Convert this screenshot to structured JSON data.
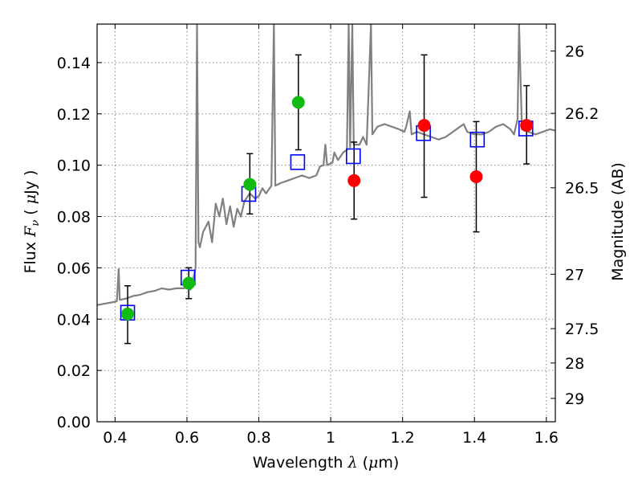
{
  "chart_data": {
    "type": "scatter",
    "title": "",
    "xlabel": {
      "prefix": "Wavelength  ",
      "symbol": "λ",
      "unit_open": " (",
      "unit_mu": "μ",
      "unit_rest": "m)"
    },
    "ylabel": {
      "prefix": "Flux  ",
      "symbol": "F",
      "subscript": "ν",
      "unit_open": "  ( ",
      "unit_mu": "μ",
      "unit_rest": "Jy )"
    },
    "y2label": "Magnitude (AB)",
    "xlim": [
      0.35,
      1.625
    ],
    "ylim": [
      0.0,
      0.155
    ],
    "grid": true,
    "grid_style": "dotted",
    "x_ticks": [
      {
        "value": 0.4,
        "label": "0.4"
      },
      {
        "value": 0.6,
        "label": "0.6"
      },
      {
        "value": 0.8,
        "label": "0.8"
      },
      {
        "value": 1.0,
        "label": "1"
      },
      {
        "value": 1.2,
        "label": "1.2"
      },
      {
        "value": 1.4,
        "label": "1.4"
      },
      {
        "value": 1.6,
        "label": "1.6"
      }
    ],
    "y_ticks": [
      {
        "value": 0.0,
        "label": "0.00"
      },
      {
        "value": 0.02,
        "label": "0.02"
      },
      {
        "value": 0.04,
        "label": "0.04"
      },
      {
        "value": 0.06,
        "label": "0.06"
      },
      {
        "value": 0.08,
        "label": "0.08"
      },
      {
        "value": 0.1,
        "label": "0.10"
      },
      {
        "value": 0.12,
        "label": "0.12"
      },
      {
        "value": 0.14,
        "label": "0.14"
      }
    ],
    "y2_ticks": [
      {
        "label": "26",
        "flux": 0.1445
      },
      {
        "label": "26.2",
        "flux": 0.1202
      },
      {
        "label": "26.5",
        "flux": 0.0912
      },
      {
        "label": "27",
        "flux": 0.0575
      },
      {
        "label": "27.5",
        "flux": 0.0363
      },
      {
        "label": "28",
        "flux": 0.0229
      },
      {
        "label": "29",
        "flux": 0.0091
      }
    ],
    "colors": {
      "spectrum": "#808080",
      "model": "#0000ff",
      "green": "#11bb11",
      "red": "#ff0000",
      "errorbar": "#000000",
      "grid": "#888888"
    },
    "spectrum": [
      [
        0.35,
        0.0455
      ],
      [
        0.37,
        0.046
      ],
      [
        0.39,
        0.0465
      ],
      [
        0.405,
        0.047
      ],
      [
        0.41,
        0.0595
      ],
      [
        0.413,
        0.0475
      ],
      [
        0.43,
        0.048
      ],
      [
        0.45,
        0.049
      ],
      [
        0.47,
        0.0495
      ],
      [
        0.49,
        0.0505
      ],
      [
        0.51,
        0.051
      ],
      [
        0.53,
        0.052
      ],
      [
        0.55,
        0.0515
      ],
      [
        0.57,
        0.052
      ],
      [
        0.59,
        0.052
      ],
      [
        0.605,
        0.0525
      ],
      [
        0.61,
        0.0515
      ],
      [
        0.618,
        0.056
      ],
      [
        0.624,
        0.06
      ],
      [
        0.628,
        0.155
      ],
      [
        0.632,
        0.07
      ],
      [
        0.636,
        0.068
      ],
      [
        0.645,
        0.074
      ],
      [
        0.66,
        0.078
      ],
      [
        0.67,
        0.07
      ],
      [
        0.68,
        0.085
      ],
      [
        0.69,
        0.08
      ],
      [
        0.7,
        0.087
      ],
      [
        0.71,
        0.077
      ],
      [
        0.72,
        0.084
      ],
      [
        0.73,
        0.076
      ],
      [
        0.74,
        0.083
      ],
      [
        0.75,
        0.08
      ],
      [
        0.76,
        0.086
      ],
      [
        0.775,
        0.089
      ],
      [
        0.79,
        0.087
      ],
      [
        0.8,
        0.088
      ],
      [
        0.81,
        0.091
      ],
      [
        0.82,
        0.089
      ],
      [
        0.835,
        0.092
      ],
      [
        0.842,
        0.155
      ],
      [
        0.846,
        0.092
      ],
      [
        0.86,
        0.093
      ],
      [
        0.88,
        0.094
      ],
      [
        0.9,
        0.095
      ],
      [
        0.92,
        0.096
      ],
      [
        0.94,
        0.095
      ],
      [
        0.96,
        0.096
      ],
      [
        0.97,
        0.0995
      ],
      [
        0.98,
        0.1
      ],
      [
        0.985,
        0.108
      ],
      [
        0.99,
        0.1
      ],
      [
        1.005,
        0.101
      ],
      [
        1.01,
        0.105
      ],
      [
        1.02,
        0.102
      ],
      [
        1.035,
        0.105
      ],
      [
        1.045,
        0.106
      ],
      [
        1.05,
        0.155
      ],
      [
        1.054,
        0.107
      ],
      [
        1.06,
        0.155
      ],
      [
        1.064,
        0.108
      ],
      [
        1.08,
        0.108
      ],
      [
        1.09,
        0.111
      ],
      [
        1.1,
        0.108
      ],
      [
        1.112,
        0.155
      ],
      [
        1.116,
        0.112
      ],
      [
        1.13,
        0.115
      ],
      [
        1.15,
        0.116
      ],
      [
        1.17,
        0.115
      ],
      [
        1.19,
        0.114
      ],
      [
        1.205,
        0.113
      ],
      [
        1.21,
        0.115
      ],
      [
        1.22,
        0.121
      ],
      [
        1.225,
        0.112
      ],
      [
        1.24,
        0.113
      ],
      [
        1.26,
        0.112
      ],
      [
        1.28,
        0.111
      ],
      [
        1.3,
        0.11
      ],
      [
        1.32,
        0.111
      ],
      [
        1.34,
        0.113
      ],
      [
        1.36,
        0.115
      ],
      [
        1.37,
        0.116
      ],
      [
        1.38,
        0.113
      ],
      [
        1.4,
        0.112
      ],
      [
        1.42,
        0.112
      ],
      [
        1.44,
        0.113
      ],
      [
        1.46,
        0.115
      ],
      [
        1.48,
        0.116
      ],
      [
        1.5,
        0.114
      ],
      [
        1.51,
        0.112
      ],
      [
        1.52,
        0.118
      ],
      [
        1.524,
        0.155
      ],
      [
        1.532,
        0.114
      ],
      [
        1.55,
        0.113
      ],
      [
        1.57,
        0.112
      ],
      [
        1.59,
        0.113
      ],
      [
        1.61,
        0.114
      ],
      [
        1.625,
        0.1135
      ]
    ],
    "model_squares": [
      {
        "x": 0.435,
        "y": 0.0425
      },
      {
        "x": 0.603,
        "y": 0.0562
      },
      {
        "x": 0.772,
        "y": 0.0888
      },
      {
        "x": 0.908,
        "y": 0.1012
      },
      {
        "x": 1.063,
        "y": 0.1035
      },
      {
        "x": 1.258,
        "y": 0.1125
      },
      {
        "x": 1.408,
        "y": 0.11
      },
      {
        "x": 1.543,
        "y": 0.1143
      }
    ],
    "observations": [
      {
        "x": 0.435,
        "y": 0.042,
        "yerr_low": 0.0305,
        "yerr_high": 0.053,
        "color": "green"
      },
      {
        "x": 0.605,
        "y": 0.054,
        "yerr_low": 0.048,
        "yerr_high": 0.06,
        "color": "green"
      },
      {
        "x": 0.775,
        "y": 0.0925,
        "yerr_low": 0.081,
        "yerr_high": 0.1045,
        "color": "green"
      },
      {
        "x": 0.91,
        "y": 0.1245,
        "yerr_low": 0.106,
        "yerr_high": 0.143,
        "color": "green"
      },
      {
        "x": 1.065,
        "y": 0.094,
        "yerr_low": 0.079,
        "yerr_high": 0.109,
        "color": "red"
      },
      {
        "x": 1.26,
        "y": 0.1155,
        "yerr_low": 0.0875,
        "yerr_high": 0.143,
        "color": "red"
      },
      {
        "x": 1.405,
        "y": 0.0955,
        "yerr_low": 0.074,
        "yerr_high": 0.117,
        "color": "red"
      },
      {
        "x": 1.545,
        "y": 0.1155,
        "yerr_low": 0.1005,
        "yerr_high": 0.131,
        "color": "red"
      }
    ]
  }
}
